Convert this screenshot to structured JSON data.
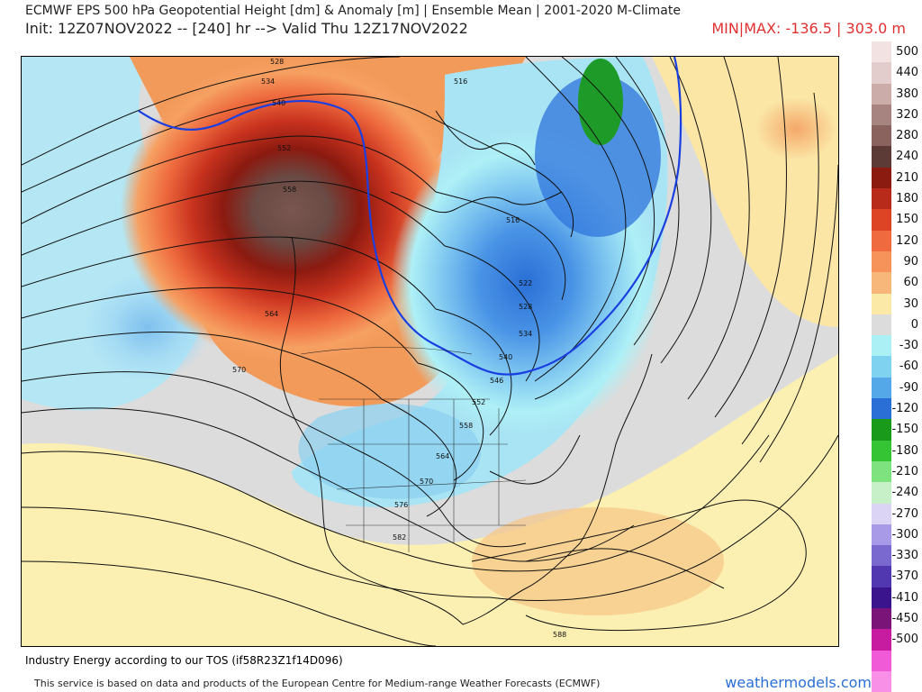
{
  "header": {
    "title_line1": "ECMWF EPS 500 hPa Geopotential Height [dm] & Anomaly [m] | Ensemble Mean | 2001-2020 M-Climate",
    "title_line2": "Init: 12Z07NOV2022 -- [240] hr --> Valid Thu 12Z17NOV2022",
    "minmax": "MIN|MAX: -136.5 | 303.0 m"
  },
  "colors": {
    "ridge_core": "#6a4a44",
    "ridge_inner": "#b83422",
    "ridge_outer": "#e86f3e",
    "warm_fringe": "#f4b070",
    "neutral": "#dcdcdc",
    "trough_light": "#a9dcf0",
    "trough_mid": "#6fb2e8",
    "trough_deep": "#2f6fd4",
    "trough_core": "#1e9a28",
    "highlight_contour": "#1a3fe0"
  },
  "legend": [
    {
      "label": "500",
      "color": "#f2e2e2"
    },
    {
      "label": "440",
      "color": "#e3cccc"
    },
    {
      "label": "380",
      "color": "#cbaca8"
    },
    {
      "label": "320",
      "color": "#a88480"
    },
    {
      "label": "280",
      "color": "#8a625e"
    },
    {
      "label": "240",
      "color": "#5c3a36"
    },
    {
      "label": "210",
      "color": "#8b1a10"
    },
    {
      "label": "180",
      "color": "#b82a1a"
    },
    {
      "label": "150",
      "color": "#dd4426"
    },
    {
      "label": "120",
      "color": "#f06a40"
    },
    {
      "label": "90",
      "color": "#f5935a"
    },
    {
      "label": "60",
      "color": "#f8b77a"
    },
    {
      "label": "30",
      "color": "#fbe9a8"
    },
    {
      "label": "0",
      "color": "#dcdcdc"
    },
    {
      "label": "-30",
      "color": "#aaf0f5"
    },
    {
      "label": "-60",
      "color": "#7fd2f0"
    },
    {
      "label": "-90",
      "color": "#54a8e8"
    },
    {
      "label": "-120",
      "color": "#2a6fd6"
    },
    {
      "label": "-150",
      "color": "#1a9a1a"
    },
    {
      "label": "-180",
      "color": "#34c434"
    },
    {
      "label": "-210",
      "color": "#7ee27e"
    },
    {
      "label": "-240",
      "color": "#c8f0c8"
    },
    {
      "label": "-270",
      "color": "#dcd4f4"
    },
    {
      "label": "-300",
      "color": "#a89ae6"
    },
    {
      "label": "-330",
      "color": "#7a6ad0"
    },
    {
      "label": "-370",
      "color": "#5238b0"
    },
    {
      "label": "-410",
      "color": "#3a148c"
    },
    {
      "label": "-450",
      "color": "#7a1478"
    },
    {
      "label": "-500",
      "color": "#c81ca0"
    },
    {
      "label": "",
      "color": "#f05ad6"
    },
    {
      "label": "",
      "color": "#f890e8"
    }
  ],
  "contour_labels": [
    "528",
    "534",
    "540",
    "546",
    "552",
    "558",
    "564",
    "570",
    "576",
    "582",
    "588",
    "516",
    "522"
  ],
  "footer": {
    "terms": "Industry Energy according to our TOS (if58R23Z1f14D096)",
    "source": "This service is based on data and products of the European Centre for Medium-range Weather Forecasts (ECMWF)",
    "brand": "weathermodels.com"
  }
}
